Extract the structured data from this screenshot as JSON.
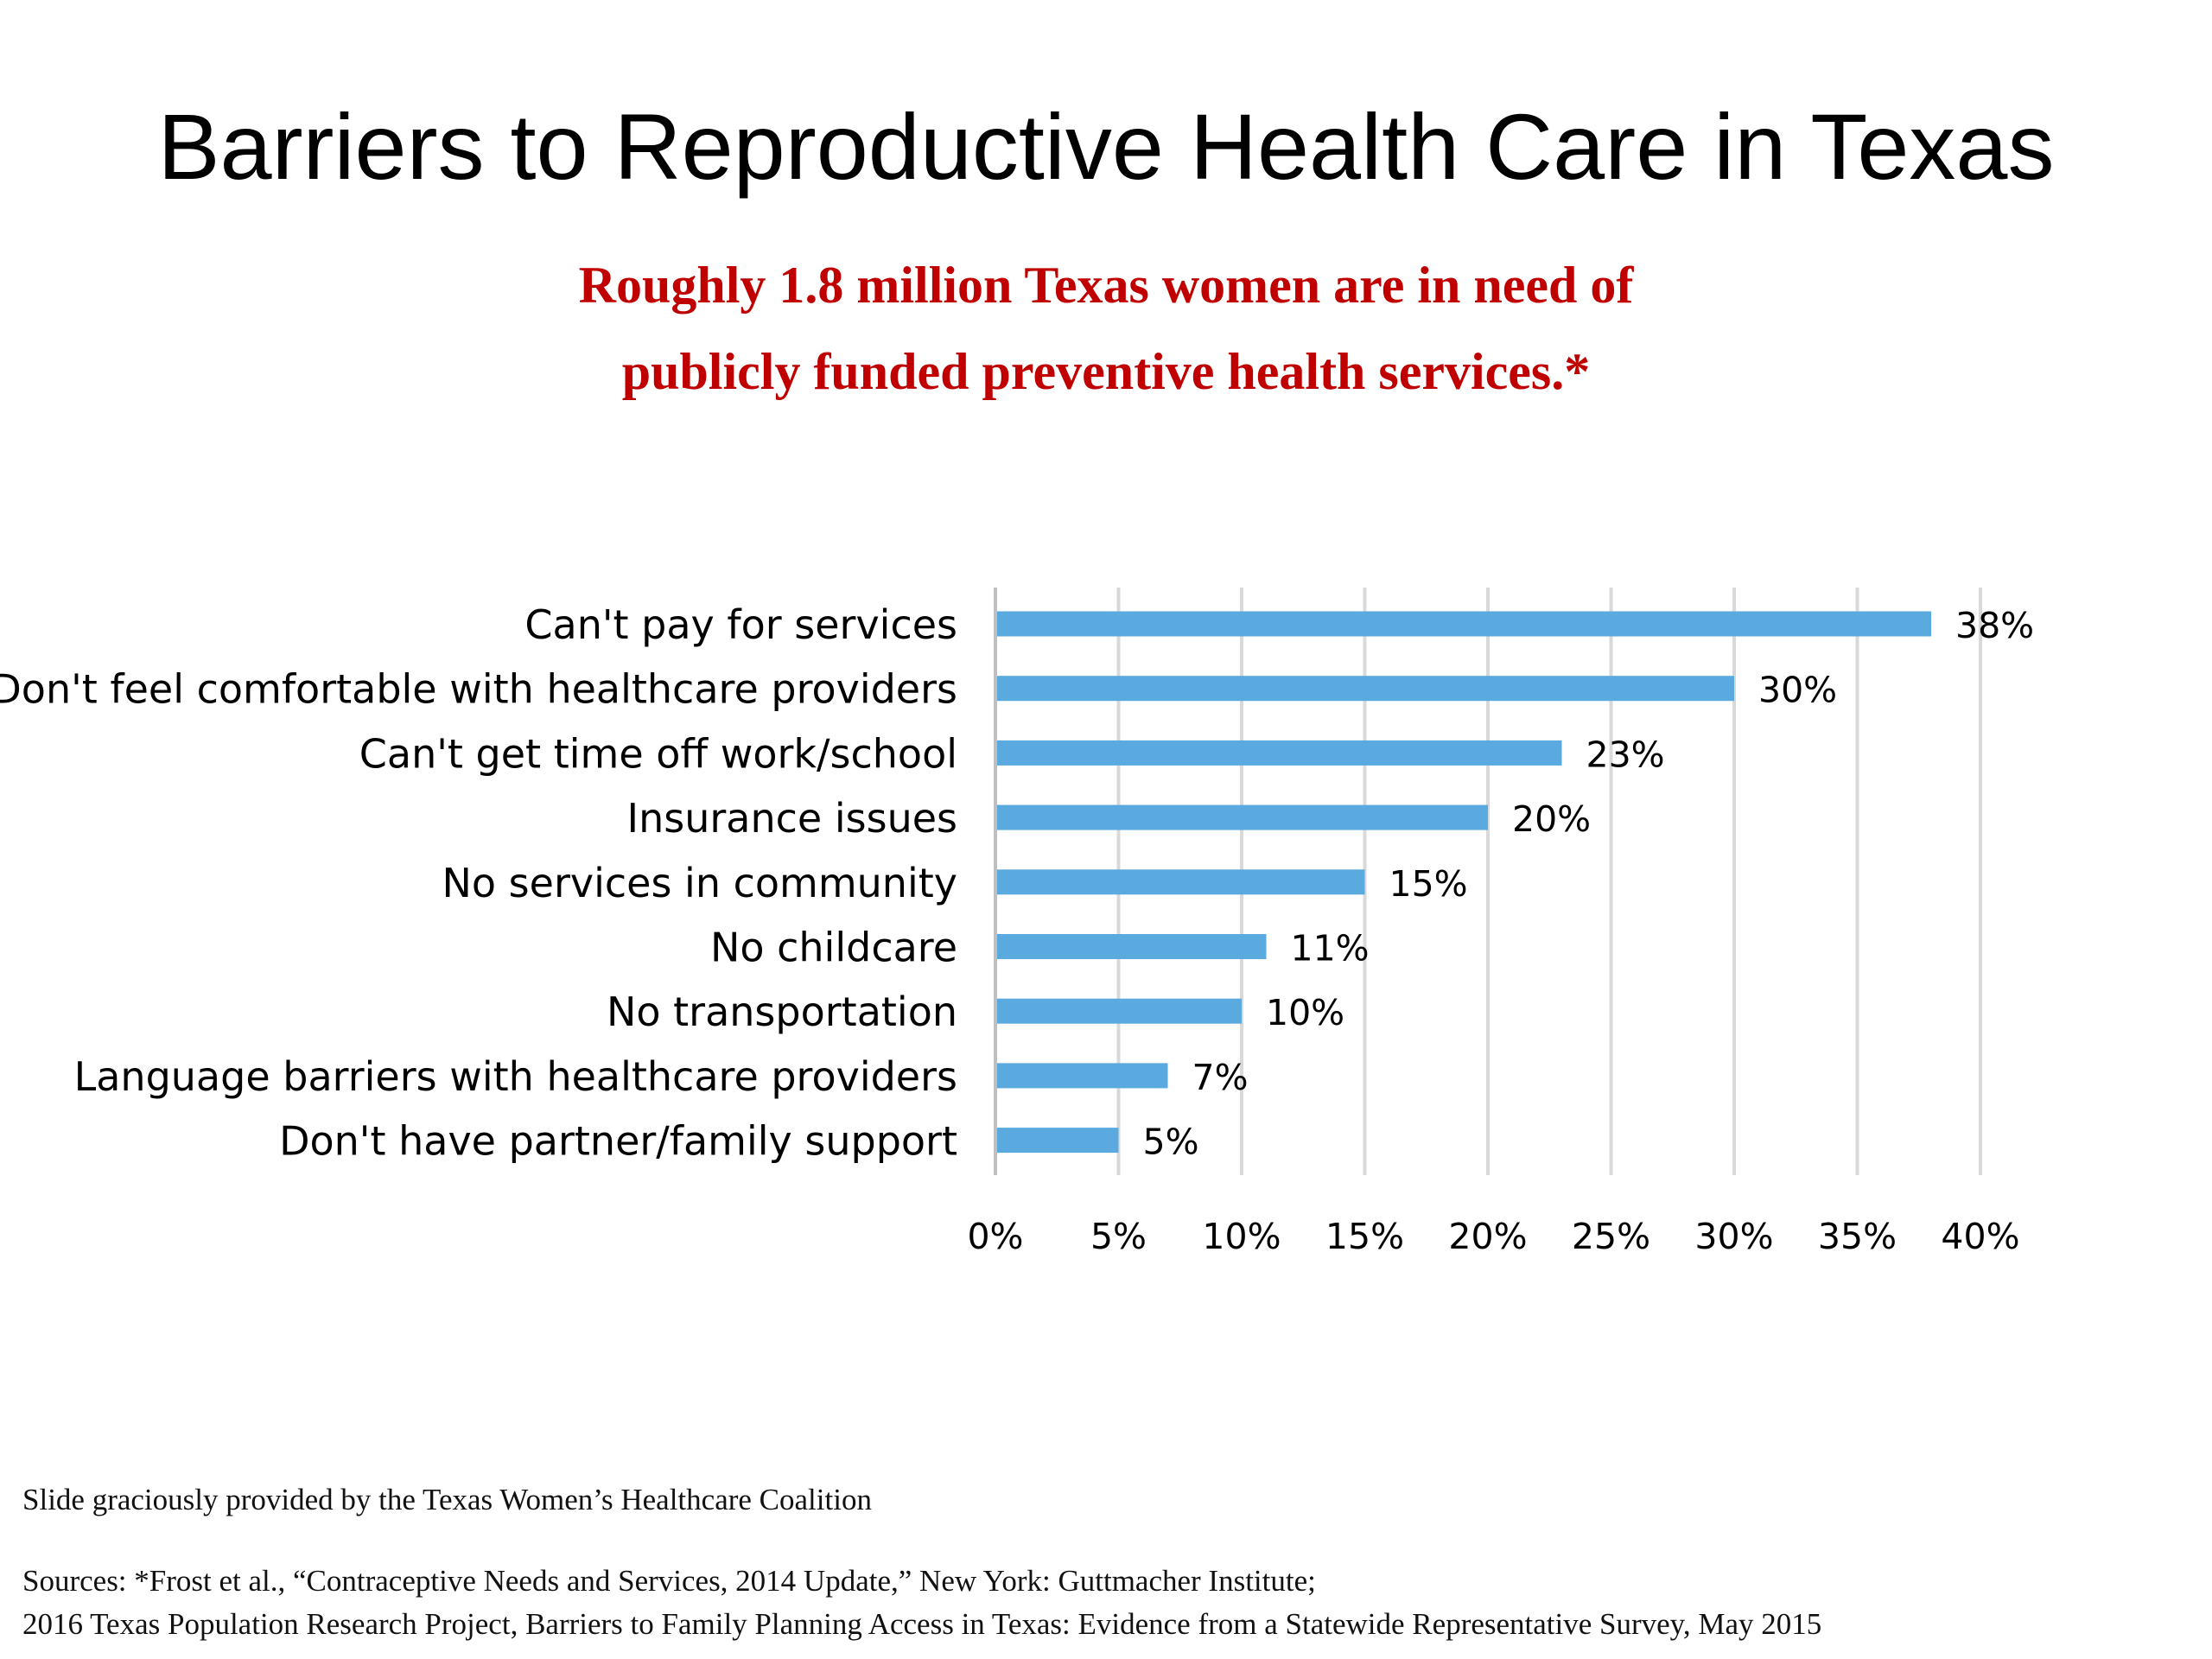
{
  "slide": {
    "title": "Barriers to Reproductive Health Care in Texas",
    "subtitle_lines": [
      "Roughly 1.8 million Texas women are in need of",
      "publicly funded preventive health services.*"
    ],
    "credit": "Slide graciously provided by the Texas Women’s Healthcare Coalition",
    "sources": [
      "Sources: *Frost et al., “Contraceptive Needs and Services, 2014 Update,” New York: Guttmacher Institute;",
      "2016 Texas Population Research Project, Barriers to Family Planning Access in Texas: Evidence from a Statewide Representative Survey, May 2015"
    ]
  },
  "colors": {
    "bar": "#5aaae0",
    "subtitle": "#c00000",
    "grid": "#d9d9d9"
  },
  "chart_data": {
    "type": "bar",
    "orientation": "horizontal",
    "categories": [
      "Can't pay for services",
      "Don't feel comfortable with healthcare providers",
      "Can't get time off work/school",
      "Insurance issues",
      "No services in community",
      "No childcare",
      "No transportation",
      "Language barriers with healthcare providers",
      "Don't have partner/family support"
    ],
    "values": [
      38,
      30,
      23,
      20,
      15,
      11,
      10,
      7,
      5
    ],
    "data_labels": [
      "38%",
      "30%",
      "23%",
      "20%",
      "15%",
      "11%",
      "10%",
      "7%",
      "5%"
    ],
    "xlim": [
      0,
      40
    ],
    "xticks": [
      0,
      5,
      10,
      15,
      20,
      25,
      30,
      35,
      40
    ],
    "xtick_labels": [
      "0%",
      "5%",
      "10%",
      "15%",
      "20%",
      "25%",
      "30%",
      "35%",
      "40%"
    ],
    "grid": true,
    "legend": "none"
  }
}
